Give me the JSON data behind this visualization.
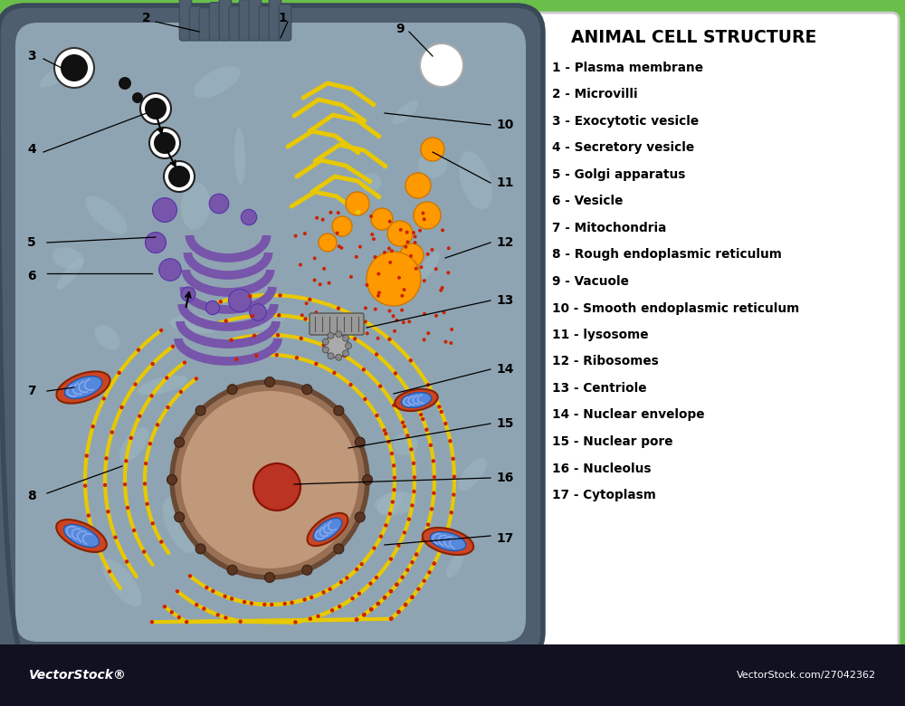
{
  "title": "ANIMAL CELL STRUCTURE",
  "bg_green": "#6abf4b",
  "bg_white": "#ffffff",
  "legend": [
    "1 - Plasma membrane",
    "2 - Microvilli",
    "3 - Exocytotic vesicle",
    "4 - Secretory vesicle",
    "5 - Golgi apparatus",
    "6 - Vesicle",
    "7 - Mitochondria",
    "8 - Rough endoplasmic reticulum",
    "9 - Vacuole",
    "10 - Smooth endoplasmic reticulum",
    "11 - lysosome",
    "12 - Ribosomes",
    "13 - Centriole",
    "14 - Nuclear envelope",
    "15 - Nuclear pore",
    "16 - Nucleolus",
    "17 - Cytoplasm"
  ],
  "bottom_bar_color": "#1a1a2e",
  "bottom_text_left": "VectorStock®",
  "bottom_text_right": "VectorStock.com/27042362",
  "cell_outer": "#6b7f8e",
  "cell_border": "#4a5a68",
  "cytoplasm": "#8fa4b2",
  "nucleus_fill": "#b08a70",
  "nucleus_border": "#8a6a50",
  "nucleolus_fill": "#c05030",
  "rer_color": "#e8c800",
  "ribosome_color": "#cc2200",
  "golgi_color": "#7755aa",
  "vesicle_color": "#7755aa",
  "lyso_color": "#ff9900",
  "mito_outer": "#cc4422",
  "mito_inner": "#4477cc",
  "ser_color": "#e8c800"
}
